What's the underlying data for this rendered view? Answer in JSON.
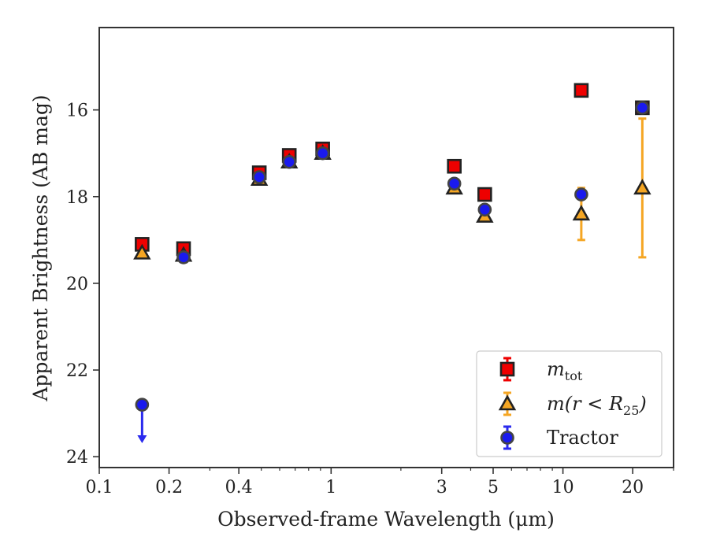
{
  "chart_data": {
    "type": "scatter",
    "xlabel": "Observed-frame Wavelength (μm)",
    "ylabel": "Apparent Brightness (AB mag)",
    "x_scale": "log",
    "xlim": [
      0.1,
      30
    ],
    "ylim": [
      24.25,
      14.1
    ],
    "y_inverted": true,
    "grid": false,
    "legend_position": "bottom-right",
    "x_ticks": [
      {
        "value": 0.1,
        "label": "0.1"
      },
      {
        "value": 0.2,
        "label": "0.2"
      },
      {
        "value": 0.4,
        "label": "0.4"
      },
      {
        "value": 1,
        "label": "1"
      },
      {
        "value": 3,
        "label": "3"
      },
      {
        "value": 5,
        "label": "5"
      },
      {
        "value": 10,
        "label": "10"
      },
      {
        "value": 20,
        "label": "20"
      }
    ],
    "y_ticks": [
      {
        "value": 16,
        "label": "16"
      },
      {
        "value": 18,
        "label": "18"
      },
      {
        "value": 20,
        "label": "20"
      },
      {
        "value": 22,
        "label": "22"
      },
      {
        "value": 24,
        "label": "24"
      }
    ],
    "series": [
      {
        "name": "m_tot",
        "legend": {
          "base": "m",
          "sub": "tot",
          "sup": ""
        },
        "marker": "square",
        "fill": "#ee0000",
        "edge": "#222222",
        "errcolor": "#ee0000",
        "points": [
          {
            "x": 0.153,
            "y": 19.1
          },
          {
            "x": 0.231,
            "y": 19.2
          },
          {
            "x": 0.49,
            "y": 17.45
          },
          {
            "x": 0.66,
            "y": 17.05
          },
          {
            "x": 0.92,
            "y": 16.9
          },
          {
            "x": 3.4,
            "y": 17.3
          },
          {
            "x": 4.6,
            "y": 17.95
          },
          {
            "x": 12.0,
            "y": 15.55
          },
          {
            "x": 22.0,
            "y": 15.95
          }
        ]
      },
      {
        "name": "m(r < R25)",
        "legend": {
          "base": "m(r < R",
          "sub": "25",
          "sup": ")"
        },
        "marker": "triangle",
        "fill": "#f5a623",
        "edge": "#222222",
        "errcolor": "#f5a623",
        "points": [
          {
            "x": 0.153,
            "y": 19.3
          },
          {
            "x": 0.231,
            "y": 19.35
          },
          {
            "x": 0.49,
            "y": 17.6
          },
          {
            "x": 0.66,
            "y": 17.2
          },
          {
            "x": 0.92,
            "y": 17.0
          },
          {
            "x": 3.4,
            "y": 17.8
          },
          {
            "x": 4.6,
            "y": 18.45
          },
          {
            "x": 12.0,
            "y": 18.4,
            "err": 0.6
          },
          {
            "x": 22.0,
            "y": 17.8,
            "err": 1.6
          }
        ]
      },
      {
        "name": "Tractor",
        "legend": {
          "base": "Tractor",
          "sub": "",
          "sup": ""
        },
        "marker": "circle",
        "fill": "#1a1aee",
        "edge": "#444444",
        "errcolor": "#2a2aee",
        "points": [
          {
            "x": 0.153,
            "y": 22.8,
            "upper_limit": true
          },
          {
            "x": 0.231,
            "y": 19.4
          },
          {
            "x": 0.49,
            "y": 17.55
          },
          {
            "x": 0.66,
            "y": 17.2
          },
          {
            "x": 0.92,
            "y": 17.0
          },
          {
            "x": 3.4,
            "y": 17.7
          },
          {
            "x": 4.6,
            "y": 18.3
          },
          {
            "x": 12.0,
            "y": 17.95
          },
          {
            "x": 22.0,
            "y": 15.95
          }
        ]
      }
    ]
  }
}
